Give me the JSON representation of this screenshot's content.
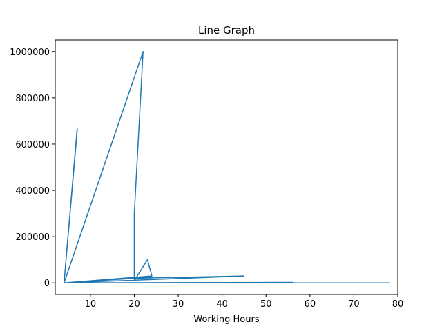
{
  "chart_data": {
    "type": "line",
    "title": "Line Graph",
    "xlabel": "Working Hours",
    "ylabel": "",
    "xlim": [
      2,
      80
    ],
    "ylim": [
      -50000,
      1050000
    ],
    "xticks": [
      10,
      20,
      30,
      40,
      50,
      60,
      70,
      80
    ],
    "yticks": [
      0,
      200000,
      400000,
      600000,
      800000,
      1000000
    ],
    "grid": false,
    "legend": "none",
    "series": [
      {
        "color": "#1f77b4",
        "x": [
          4,
          7,
          4,
          7,
          4,
          22,
          20,
          20,
          23,
          24,
          4,
          45,
          20,
          24,
          4,
          56,
          4,
          78,
          4,
          78
        ],
        "y": [
          0,
          670000,
          0,
          660000,
          0,
          1000000,
          300000,
          10000,
          100000,
          30000,
          0,
          30000,
          20000,
          25000,
          0,
          2000,
          0,
          0,
          0,
          0
        ]
      }
    ]
  }
}
